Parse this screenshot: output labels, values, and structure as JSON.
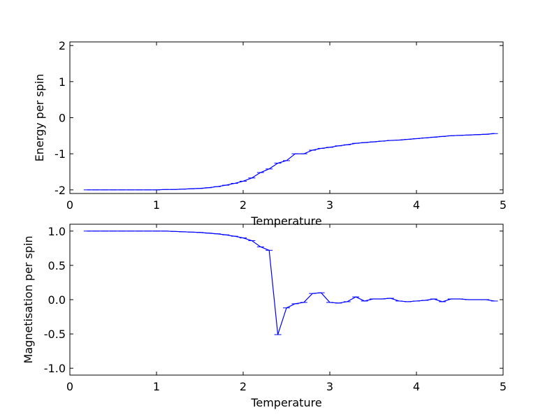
{
  "chart_data": [
    {
      "type": "line",
      "xlabel": "Temperature",
      "ylabel": "Energy per spin",
      "xlim": [
        0,
        5
      ],
      "ylim": [
        -2.1,
        2.1
      ],
      "xticks": [
        0,
        1,
        2,
        3,
        4,
        5
      ],
      "yticks": [
        -2,
        -1,
        0,
        1,
        2
      ],
      "grid": false,
      "color": "#0000ff",
      "x": [
        0.2,
        0.3,
        0.4,
        0.5,
        0.6,
        0.7,
        0.8,
        0.9,
        1.0,
        1.1,
        1.2,
        1.3,
        1.4,
        1.5,
        1.6,
        1.7,
        1.8,
        1.9,
        2.0,
        2.1,
        2.2,
        2.3,
        2.4,
        2.5,
        2.6,
        2.7,
        2.8,
        2.9,
        3.0,
        3.1,
        3.2,
        3.3,
        3.4,
        3.5,
        3.6,
        3.7,
        3.8,
        3.9,
        4.0,
        4.1,
        4.2,
        4.3,
        4.4,
        4.5,
        4.6,
        4.7,
        4.8,
        4.9
      ],
      "y": [
        -2.0,
        -2.0,
        -2.0,
        -2.0,
        -2.0,
        -2.0,
        -2.0,
        -2.0,
        -2.0,
        -1.99,
        -1.99,
        -1.98,
        -1.97,
        -1.96,
        -1.94,
        -1.91,
        -1.87,
        -1.82,
        -1.76,
        -1.67,
        -1.52,
        -1.42,
        -1.26,
        -1.19,
        -1.0,
        -1.0,
        -0.9,
        -0.85,
        -0.82,
        -0.78,
        -0.75,
        -0.71,
        -0.69,
        -0.67,
        -0.65,
        -0.63,
        -0.62,
        -0.6,
        -0.58,
        -0.56,
        -0.54,
        -0.52,
        -0.5,
        -0.49,
        -0.48,
        -0.47,
        -0.46,
        -0.44
      ]
    },
    {
      "type": "line",
      "xlabel": "Temperature",
      "ylabel": "Magnetisation per spin",
      "xlim": [
        0,
        5
      ],
      "ylim": [
        -1.1,
        1.1
      ],
      "xticks": [
        0,
        1,
        2,
        3,
        4,
        5
      ],
      "yticks": [
        -1.0,
        -0.5,
        0.0,
        0.5,
        1.0
      ],
      "grid": false,
      "color": "#0000ff",
      "x": [
        0.2,
        0.3,
        0.4,
        0.5,
        0.6,
        0.7,
        0.8,
        0.9,
        1.0,
        1.1,
        1.2,
        1.3,
        1.4,
        1.5,
        1.6,
        1.7,
        1.8,
        1.9,
        2.0,
        2.1,
        2.2,
        2.3,
        2.4,
        2.5,
        2.6,
        2.7,
        2.8,
        2.9,
        3.0,
        3.1,
        3.2,
        3.3,
        3.4,
        3.5,
        3.6,
        3.7,
        3.8,
        3.9,
        4.0,
        4.1,
        4.2,
        4.3,
        4.4,
        4.5,
        4.6,
        4.7,
        4.8,
        4.9
      ],
      "y": [
        1.0,
        1.0,
        1.0,
        1.0,
        1.0,
        1.0,
        1.0,
        1.0,
        1.0,
        1.0,
        0.995,
        0.99,
        0.985,
        0.98,
        0.97,
        0.96,
        0.945,
        0.925,
        0.9,
        0.86,
        0.77,
        0.72,
        -0.51,
        -0.12,
        -0.06,
        -0.04,
        0.09,
        0.1,
        -0.04,
        -0.05,
        -0.03,
        0.04,
        -0.02,
        0.01,
        0.01,
        0.02,
        -0.02,
        -0.03,
        -0.02,
        -0.01,
        0.01,
        -0.03,
        0.01,
        0.01,
        0.0,
        0.0,
        0.0,
        -0.02
      ]
    }
  ]
}
